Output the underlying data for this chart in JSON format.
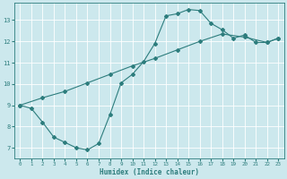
{
  "title": "",
  "xlabel": "Humidex (Indice chaleur)",
  "background_color": "#cce8ed",
  "grid_color": "#ffffff",
  "line_color": "#2d7d7d",
  "line1_x": [
    0,
    1,
    2,
    3,
    4,
    5,
    6,
    7,
    8,
    9,
    10,
    11,
    12,
    13,
    14,
    15,
    16,
    17,
    18,
    19,
    20,
    21,
    22,
    23
  ],
  "line1_y": [
    9.0,
    8.85,
    8.2,
    7.5,
    7.25,
    7.0,
    6.9,
    7.2,
    8.55,
    10.05,
    10.45,
    11.05,
    11.9,
    13.2,
    13.3,
    13.5,
    13.45,
    12.85,
    12.55,
    12.15,
    12.3,
    11.95,
    11.95,
    12.15
  ],
  "line2_x": [
    0,
    2,
    4,
    6,
    8,
    10,
    12,
    14,
    16,
    18,
    20,
    22,
    23
  ],
  "line2_y": [
    9.0,
    9.35,
    9.65,
    10.05,
    10.45,
    10.85,
    11.2,
    11.6,
    12.0,
    12.35,
    12.2,
    11.95,
    12.15
  ],
  "xlim": [
    -0.5,
    23.5
  ],
  "ylim": [
    6.5,
    13.8
  ],
  "yticks": [
    7,
    8,
    9,
    10,
    11,
    12,
    13
  ],
  "xticks": [
    0,
    1,
    2,
    3,
    4,
    5,
    6,
    7,
    8,
    9,
    10,
    11,
    12,
    13,
    14,
    15,
    16,
    17,
    18,
    19,
    20,
    21,
    22,
    23
  ],
  "marker": "D",
  "marker_size": 2.0,
  "line_width": 0.8
}
